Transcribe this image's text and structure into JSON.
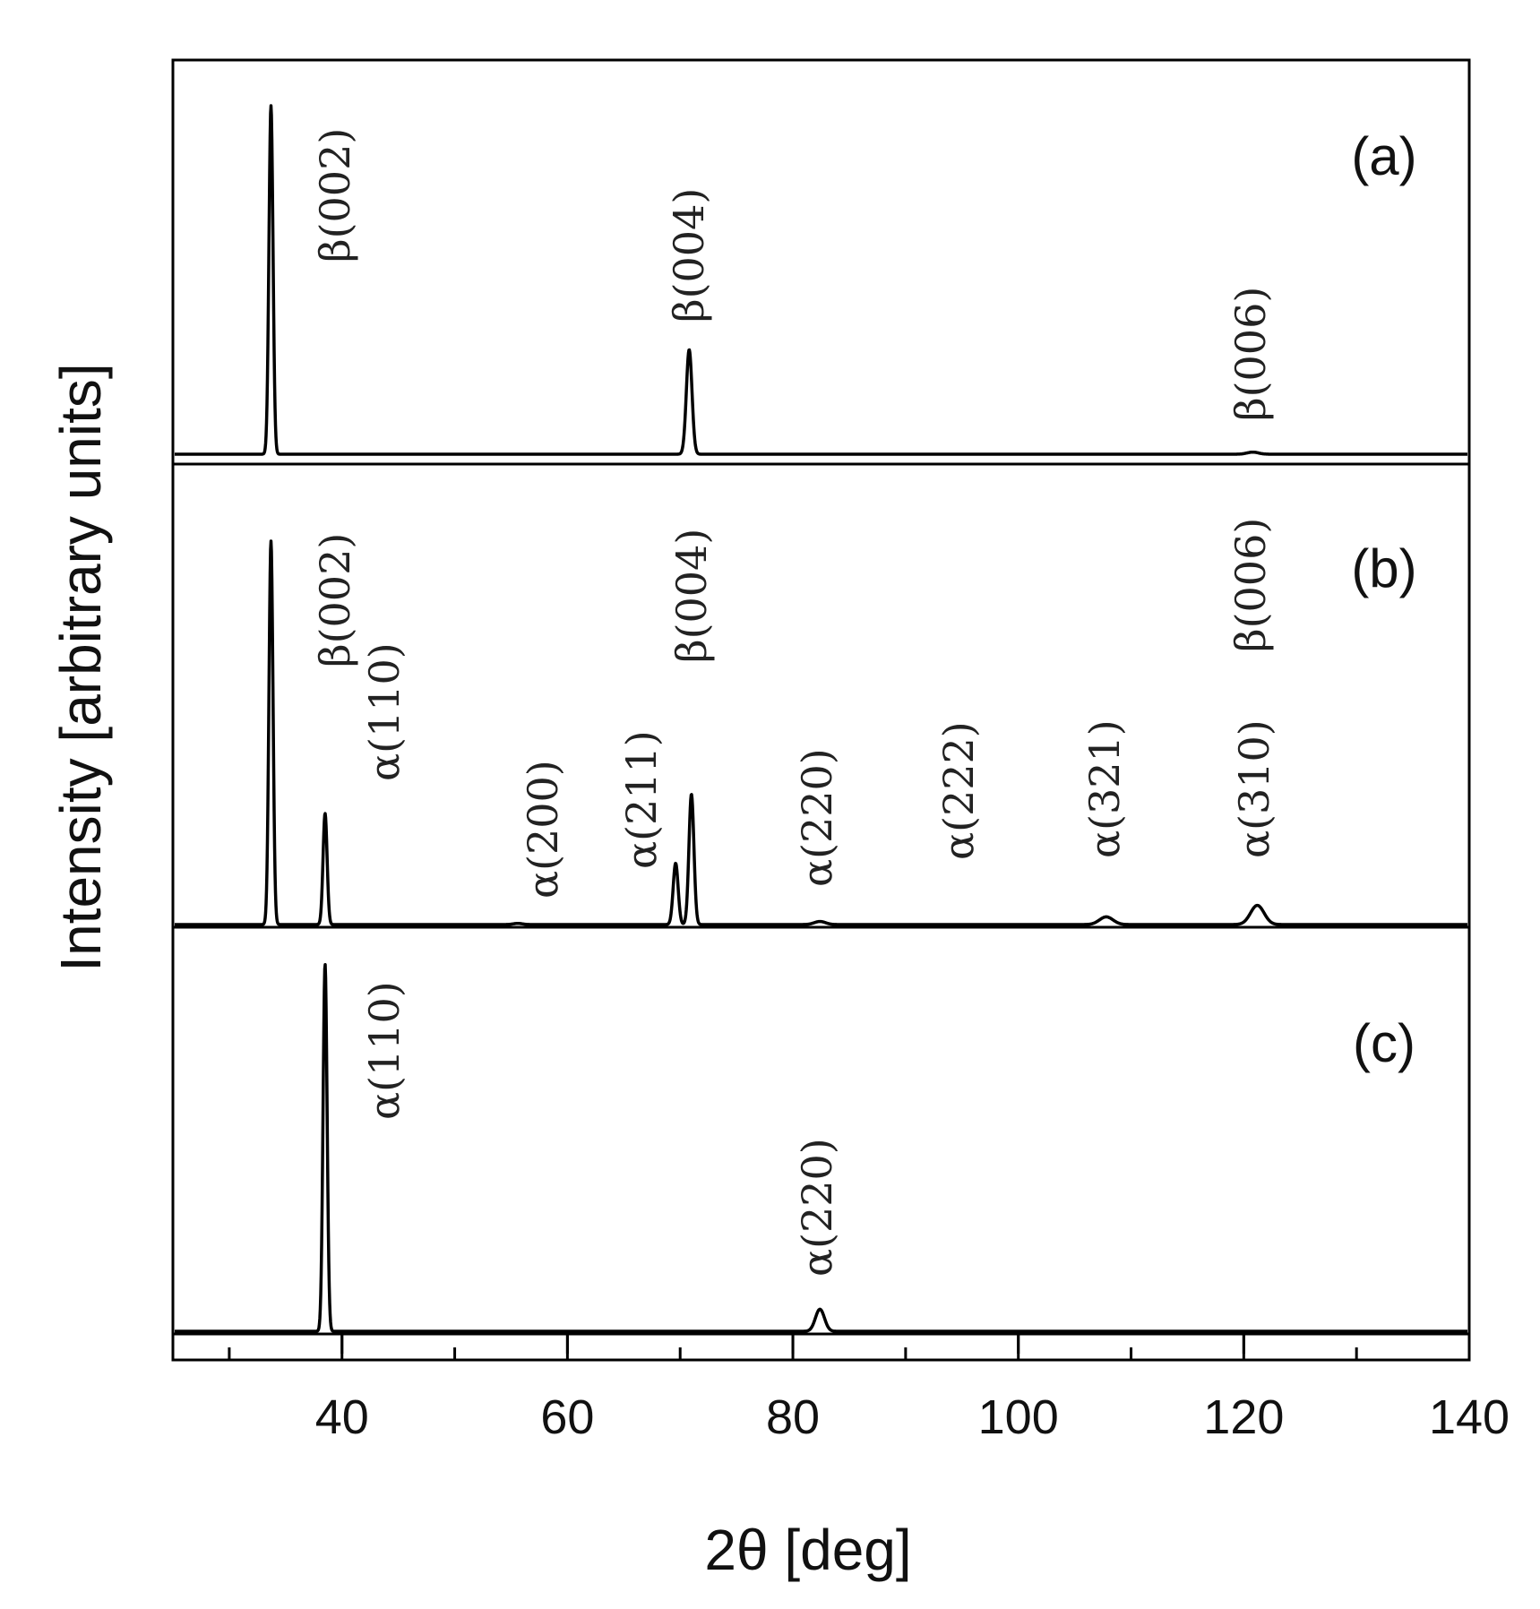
{
  "chart_data": {
    "type": "line",
    "xlabel": "2θ [deg]",
    "ylabel": "Intensity [arbitrary units]",
    "xlim": [
      25,
      140
    ],
    "x_ticks": [
      40,
      60,
      80,
      100,
      120,
      140
    ],
    "x_minor_ticks": [
      30,
      50,
      70,
      90,
      110,
      130
    ],
    "grid": false,
    "legend": "none",
    "line_color": "#000000",
    "panels": [
      {
        "label": "(a)",
        "peaks": [
          {
            "x": 33.7,
            "height": 1.0,
            "width": 0.18,
            "annotation": "β(002)"
          },
          {
            "x": 70.8,
            "height": 0.3,
            "width": 0.25,
            "annotation": "β(004)"
          },
          {
            "x": 120.8,
            "height": 0.006,
            "width": 0.5,
            "annotation": "β(006)"
          }
        ]
      },
      {
        "label": "(b)",
        "peaks": [
          {
            "x": 33.7,
            "height": 1.0,
            "width": 0.18,
            "annotation": "β(002)"
          },
          {
            "x": 38.5,
            "height": 0.29,
            "width": 0.18,
            "annotation": "α(110)"
          },
          {
            "x": 55.6,
            "height": 0.003,
            "width": 0.4,
            "annotation": "α(200)"
          },
          {
            "x": 69.6,
            "height": 0.16,
            "width": 0.22,
            "annotation": "α(211)"
          },
          {
            "x": 71.0,
            "height": 0.34,
            "width": 0.22,
            "annotation": "β(004)"
          },
          {
            "x": 82.4,
            "height": 0.008,
            "width": 0.5,
            "annotation": "α(220)"
          },
          {
            "x": 107.8,
            "height": 0.02,
            "width": 0.6,
            "annotation": "α(222)"
          },
          {
            "x": 121.2,
            "height": 0.05,
            "width": 0.6,
            "annotation": "α(321)"
          },
          {
            "x": 122.5,
            "height": 0.0,
            "width": 0.5,
            "annotation": "β(006)"
          },
          {
            "x": 95.0,
            "height": 0.0,
            "width": 0.5,
            "annotation": "α(310)"
          }
        ]
      },
      {
        "label": "(c)",
        "peaks": [
          {
            "x": 38.5,
            "height": 1.0,
            "width": 0.18,
            "annotation": "α(110)"
          },
          {
            "x": 82.4,
            "height": 0.06,
            "width": 0.4,
            "annotation": "α(220)"
          }
        ]
      }
    ]
  }
}
